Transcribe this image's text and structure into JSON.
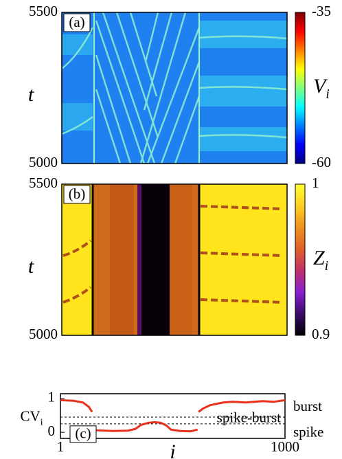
{
  "chart_data": [
    {
      "type": "heatmap",
      "panel_label": "(a)",
      "ylabel": "t",
      "ylim": [
        5000,
        5500
      ],
      "yticks": [
        5000,
        5500
      ],
      "colorbar_label": "V",
      "colorbar_label_sub": "i",
      "clim": [
        -60,
        -35
      ],
      "cticks": [
        -60,
        -35
      ],
      "colormap": [
        "#00007f",
        "#0000ff",
        "#007fff",
        "#00ffff",
        "#7fff7f",
        "#ffff00",
        "#ff7f00",
        "#ff0000",
        "#7f0000"
      ]
    },
    {
      "type": "heatmap",
      "panel_label": "(b)",
      "ylabel": "t",
      "ylim": [
        5000,
        5500
      ],
      "yticks": [
        5000,
        5500
      ],
      "colorbar_label": "Z",
      "colorbar_label_sub": "i",
      "clim": [
        0.9,
        1
      ],
      "cticks": [
        0.9,
        1
      ],
      "colormap": [
        "#000000",
        "#3a0a6a",
        "#8a1fd0",
        "#c0306a",
        "#e0602a",
        "#f09020",
        "#ffd020",
        "#ffff30"
      ]
    },
    {
      "type": "line",
      "panel_label": "(c)",
      "ylabel": "CV",
      "ylabel_sub": "i",
      "xlabel": "i",
      "log_x": true,
      "xlim": [
        1,
        1000
      ],
      "xticks": [
        1,
        1000
      ],
      "ylim": [
        -0.18,
        1.14
      ],
      "yticks": [
        0,
        1
      ],
      "hlines": [
        0.45,
        0.25
      ],
      "region_labels": [
        "burst",
        "spike-burst",
        "spike"
      ],
      "series": [
        {
          "color": "#e8321e",
          "x": [
            1,
            1.5,
            2,
            2.4,
            2.65,
            2.75,
            2.8,
            3,
            5,
            8,
            10,
            12,
            15,
            18,
            22,
            26,
            30,
            40,
            55,
            68,
            69,
            70,
            80,
            100,
            150,
            200,
            300,
            500,
            700,
            1000
          ],
          "values": [
            0.95,
            0.93,
            0.88,
            0.75,
            0.6,
            null,
            0.1,
            0.06,
            0.04,
            0.05,
            0.1,
            0.22,
            0.28,
            0.3,
            0.28,
            0.2,
            0.08,
            0.04,
            0.03,
            0.08,
            null,
            0.6,
            0.7,
            0.8,
            0.88,
            0.9,
            0.88,
            0.92,
            0.9,
            0.95
          ]
        }
      ]
    }
  ]
}
